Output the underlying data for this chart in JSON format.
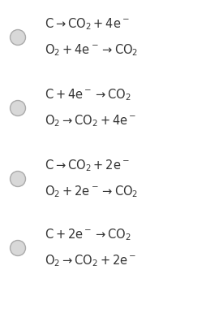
{
  "background_color": "#ffffff",
  "options": [
    {
      "line1": "$\\mathrm{C \\rightarrow CO_2 + 4e^-}$",
      "line2": "$\\mathrm{O_2 + 4e^- \\rightarrow CO_2}$"
    },
    {
      "line1": "$\\mathrm{C + 4e^- \\rightarrow CO_2}$",
      "line2": "$\\mathrm{O_2 \\rightarrow CO_2 + 4e^-}$"
    },
    {
      "line1": "$\\mathrm{C \\rightarrow CO_2 + 2e^-}$",
      "line2": "$\\mathrm{O_2 + 2e^- \\rightarrow CO_2}$"
    },
    {
      "line1": "$\\mathrm{C + 2e^- \\rightarrow CO_2}$",
      "line2": "$\\mathrm{O_2 \\rightarrow CO_2 + 2e^-}$"
    }
  ],
  "circle_face_color": "#d8d8d8",
  "circle_edge_color": "#aaaaaa",
  "text_color": "#333333",
  "font_size": 10.5,
  "fig_width": 2.55,
  "fig_height": 3.91,
  "dpi": 100
}
